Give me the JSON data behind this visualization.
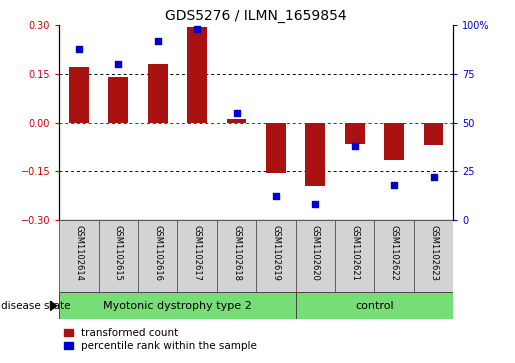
{
  "title": "GDS5276 / ILMN_1659854",
  "samples": [
    "GSM1102614",
    "GSM1102615",
    "GSM1102616",
    "GSM1102617",
    "GSM1102618",
    "GSM1102619",
    "GSM1102620",
    "GSM1102621",
    "GSM1102622",
    "GSM1102623"
  ],
  "transformed_count": [
    0.17,
    0.14,
    0.18,
    0.295,
    0.01,
    -0.155,
    -0.195,
    -0.065,
    -0.115,
    -0.07
  ],
  "percentile_rank": [
    88,
    80,
    92,
    98,
    55,
    12,
    8,
    38,
    18,
    22
  ],
  "group1_samples": 6,
  "group2_samples": 4,
  "group1_label": "Myotonic dystrophy type 2",
  "group2_label": "control",
  "group_color": "#77DD77",
  "ylim_left": [
    -0.3,
    0.3
  ],
  "ylim_right": [
    0,
    100
  ],
  "yticks_left": [
    -0.3,
    -0.15,
    0.0,
    0.15,
    0.3
  ],
  "yticks_right": [
    0,
    25,
    50,
    75,
    100
  ],
  "ytick_labels_right": [
    "0",
    "25",
    "50",
    "75",
    "100%"
  ],
  "bar_color": "#AA1111",
  "dot_color": "#0000CC",
  "bar_width": 0.5,
  "sample_box_color": "#D3D3D3",
  "disease_state_label": "disease state",
  "legend_items": [
    {
      "label": "transformed count",
      "color": "#AA1111"
    },
    {
      "label": "percentile rank within the sample",
      "color": "#0000CC"
    }
  ],
  "title_fontsize": 10,
  "tick_fontsize": 7,
  "sample_fontsize": 6,
  "legend_fontsize": 7.5,
  "disease_fontsize": 8
}
